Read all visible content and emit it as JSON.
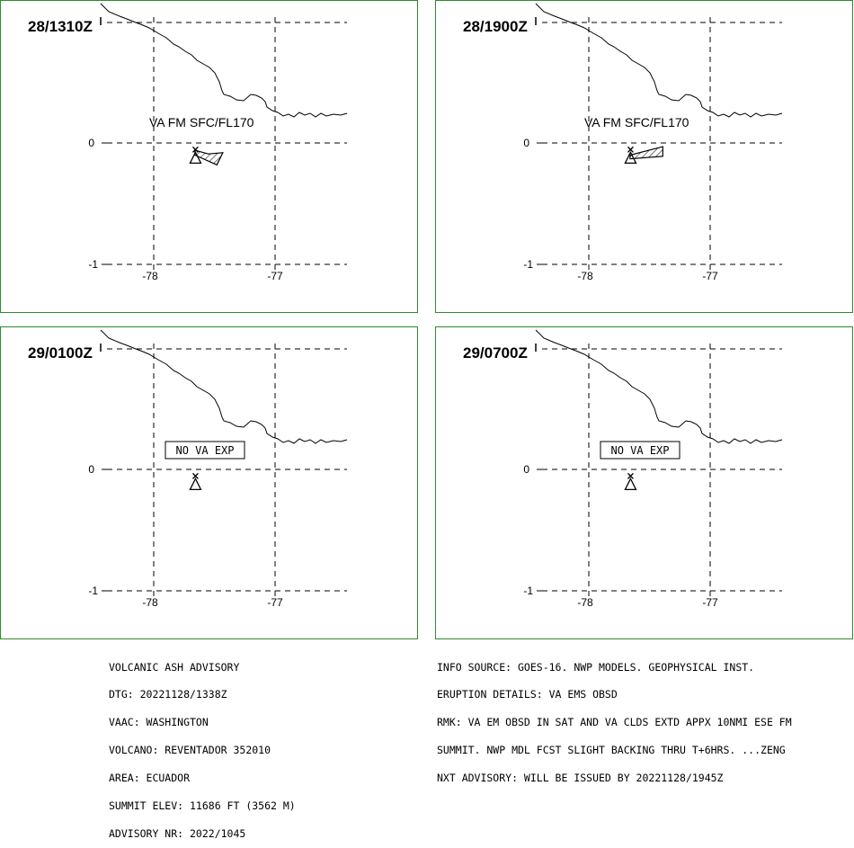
{
  "panels": [
    {
      "time": "28/1310Z",
      "annotation": "VA FM SFC/FL170",
      "boxed": false,
      "ash": [
        [
          -77.66,
          -0.06
        ],
        [
          -77.55,
          -0.09
        ],
        [
          -77.43,
          -0.08
        ],
        [
          -77.48,
          -0.18
        ],
        [
          -77.66,
          -0.1
        ]
      ]
    },
    {
      "time": "28/1900Z",
      "annotation": "VA FM SFC/FL170",
      "boxed": false,
      "ash": [
        [
          -77.66,
          -0.1
        ],
        [
          -77.39,
          -0.03
        ],
        [
          -77.39,
          -0.11
        ],
        [
          -77.66,
          -0.13
        ]
      ]
    },
    {
      "time": "29/0100Z",
      "annotation": "NO VA EXP",
      "boxed": true,
      "ash": null
    },
    {
      "time": "29/0700Z",
      "annotation": "NO VA EXP",
      "boxed": true,
      "ash": null
    }
  ],
  "axes": {
    "lon_ticks": [
      "-78",
      "-77"
    ],
    "lat_ticks": [
      "0",
      "-1"
    ]
  },
  "volcano": {
    "lon": -77.656,
    "lat": -0.077
  },
  "advisory_left": [
    "VOLCANIC ASH ADVISORY",
    "DTG: 20221128/1338Z",
    "VAAC: WASHINGTON",
    "VOLCANO: REVENTADOR 352010",
    "AREA: ECUADOR",
    "SUMMIT ELEV: 11686 FT (3562 M)",
    "ADVISORY NR: 2022/1045"
  ],
  "advisory_right": [
    "INFO SOURCE: GOES-16. NWP MODELS. GEOPHYSICAL INST.",
    "ERUPTION DETAILS: VA EMS OBSD",
    "RMK: VA EM OBSD IN SAT AND VA CLDS EXTD APPX 10NMI ESE FM",
    "SUMMIT. NWP MDL FCST SLIGHT BACKING THRU T+6HRS. ...ZENG",
    "NXT ADVISORY: WILL BE ISSUED BY 20221128/1945Z"
  ]
}
